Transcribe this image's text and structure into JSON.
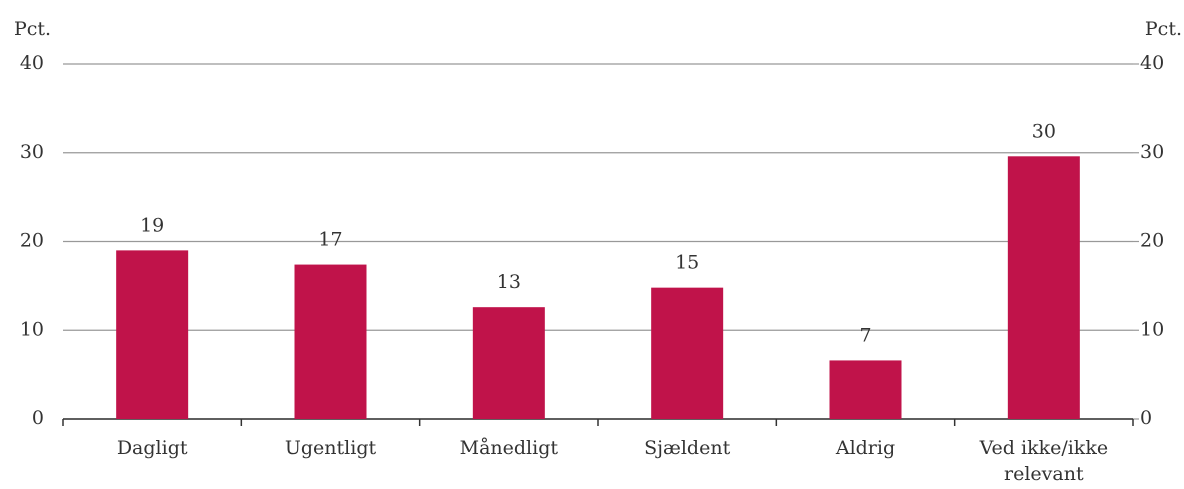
{
  "chart_data": {
    "type": "bar",
    "y_label": "Pct.",
    "y2_label": "Pct.",
    "categories": [
      "Dagligt",
      "Ugentligt",
      "Månedligt",
      "Sjældent",
      "Aldrig",
      "Ved ikke/ikke relevant"
    ],
    "values": [
      19,
      17.4,
      12.6,
      14.8,
      6.6,
      29.6
    ],
    "value_labels": [
      "19",
      "17",
      "13",
      "15",
      "7",
      "30"
    ],
    "color": "#c0134a",
    "ylim": [
      0,
      40
    ],
    "yticks": [
      0,
      10,
      20,
      30,
      40
    ],
    "y2lim": [
      0,
      40
    ],
    "y2ticks": [
      0,
      10,
      20,
      30,
      40
    ],
    "grid": true
  }
}
